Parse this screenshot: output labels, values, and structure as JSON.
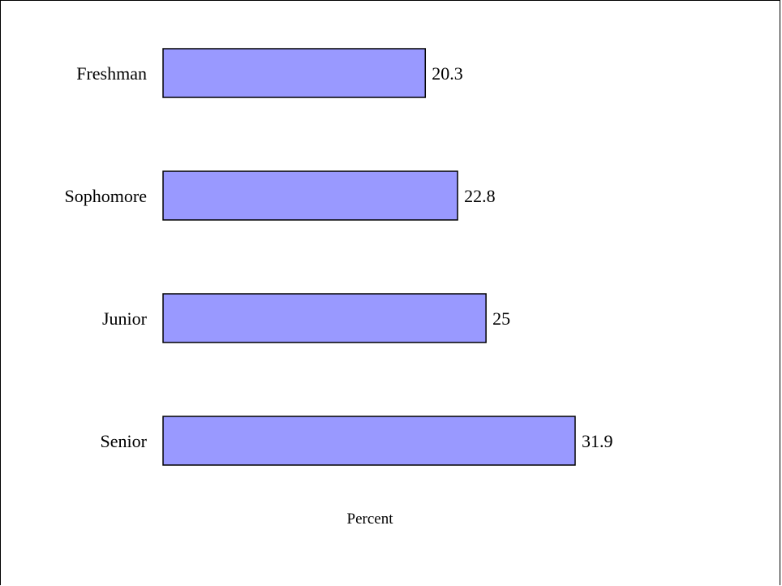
{
  "chart_data": {
    "type": "bar",
    "orientation": "horizontal",
    "categories": [
      "Freshman",
      "Sophomore",
      "Junior",
      "Senior"
    ],
    "values": [
      20.3,
      22.8,
      25,
      31.9
    ],
    "value_labels": [
      "20.3",
      "22.8",
      "25",
      "31.9"
    ],
    "title": "",
    "xlabel": "Percent",
    "ylabel": "",
    "xlim": [
      0,
      31.9
    ],
    "grid": false,
    "legend": "none",
    "bar_color": "#9999ff",
    "bar_edge_color": "#000000"
  }
}
